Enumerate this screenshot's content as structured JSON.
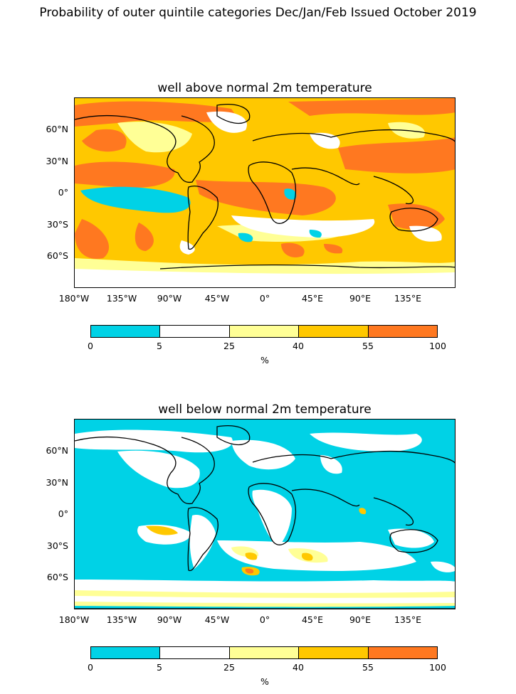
{
  "title": "Probability of outer quintile categories Dec/Jan/Feb Issued October 2019",
  "colors": {
    "cyan": "#00d2e6",
    "white": "#ffffff",
    "light_yellow": "#ffff96",
    "yellow_orange": "#ffc800",
    "orange": "#ff7820",
    "coastline": "#000000"
  },
  "panels": [
    {
      "title": "well above normal 2m temperature",
      "lat_ticks": [
        "60°N",
        "30°N",
        "0°",
        "30°S",
        "60°S"
      ],
      "lon_ticks": [
        "180°W",
        "135°W",
        "90°W",
        "45°W",
        "0°",
        "45°E",
        "90°E",
        "135°E"
      ],
      "colorbar": {
        "ticks": [
          "0",
          "5",
          "25",
          "40",
          "55",
          "100"
        ],
        "unit": "%"
      }
    },
    {
      "title": "well below normal 2m temperature",
      "lat_ticks": [
        "60°N",
        "30°N",
        "0°",
        "30°S",
        "60°S"
      ],
      "lon_ticks": [
        "180°W",
        "135°W",
        "90°W",
        "45°W",
        "0°",
        "45°E",
        "90°E",
        "135°E"
      ],
      "colorbar": {
        "ticks": [
          "0",
          "5",
          "25",
          "40",
          "55",
          "100"
        ],
        "unit": "%"
      }
    }
  ]
}
